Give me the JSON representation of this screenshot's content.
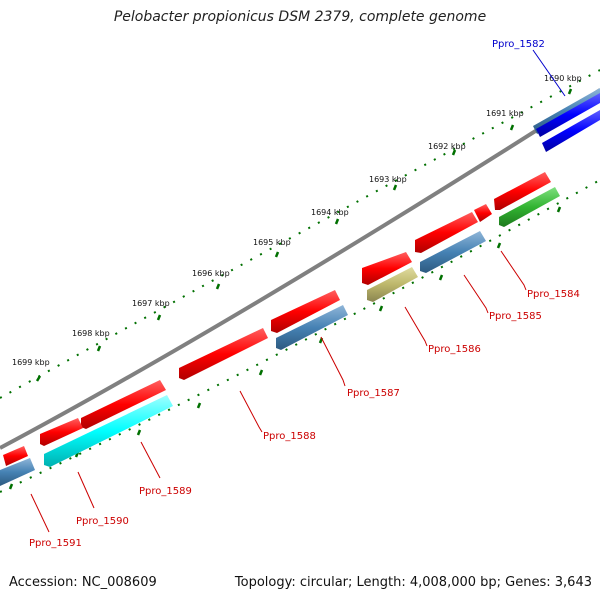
{
  "title": "Pelobacter propionicus DSM 2379, complete genome",
  "footer": {
    "accession": "Accession: NC_008609",
    "topology": "Topology: circular; Length: 4,008,000 bp; Genes: 3,643"
  },
  "colors": {
    "forward_gene": "#ff0000",
    "reverse_gene": "#4682b4",
    "tick": "#007000",
    "backbone": "#808080",
    "red_label": "#cc0000",
    "blue_label": "#0000cc"
  },
  "kbp_ticks": [
    "1690 kbp",
    "1691 kbp",
    "1692 kbp",
    "1693 kbp",
    "1694 kbp",
    "1695 kbp",
    "1696 kbp",
    "1697 kbp",
    "1698 kbp",
    "1699 kbp"
  ],
  "genes": [
    {
      "name": "Ppro_1582",
      "color": "#0000ff",
      "label_color": "#0000cc"
    },
    {
      "name": "Ppro_1584",
      "color": "#32b432",
      "label_color": "#cc0000"
    },
    {
      "name": "Ppro_1585",
      "color": "#4682b4",
      "label_color": "#cc0000"
    },
    {
      "name": "Ppro_1586",
      "color": "#bdb76b",
      "label_color": "#cc0000"
    },
    {
      "name": "Ppro_1587",
      "color": "#4682b4",
      "label_color": "#cc0000"
    },
    {
      "name": "Ppro_1588",
      "color": "#ff0000",
      "label_color": "#cc0000"
    },
    {
      "name": "Ppro_1589",
      "color": "#00ffff",
      "label_color": "#cc0000"
    },
    {
      "name": "Ppro_1590",
      "color": "#ff0000",
      "label_color": "#cc0000"
    },
    {
      "name": "Ppro_1591",
      "color": "#ff0000",
      "label_color": "#cc0000"
    }
  ]
}
